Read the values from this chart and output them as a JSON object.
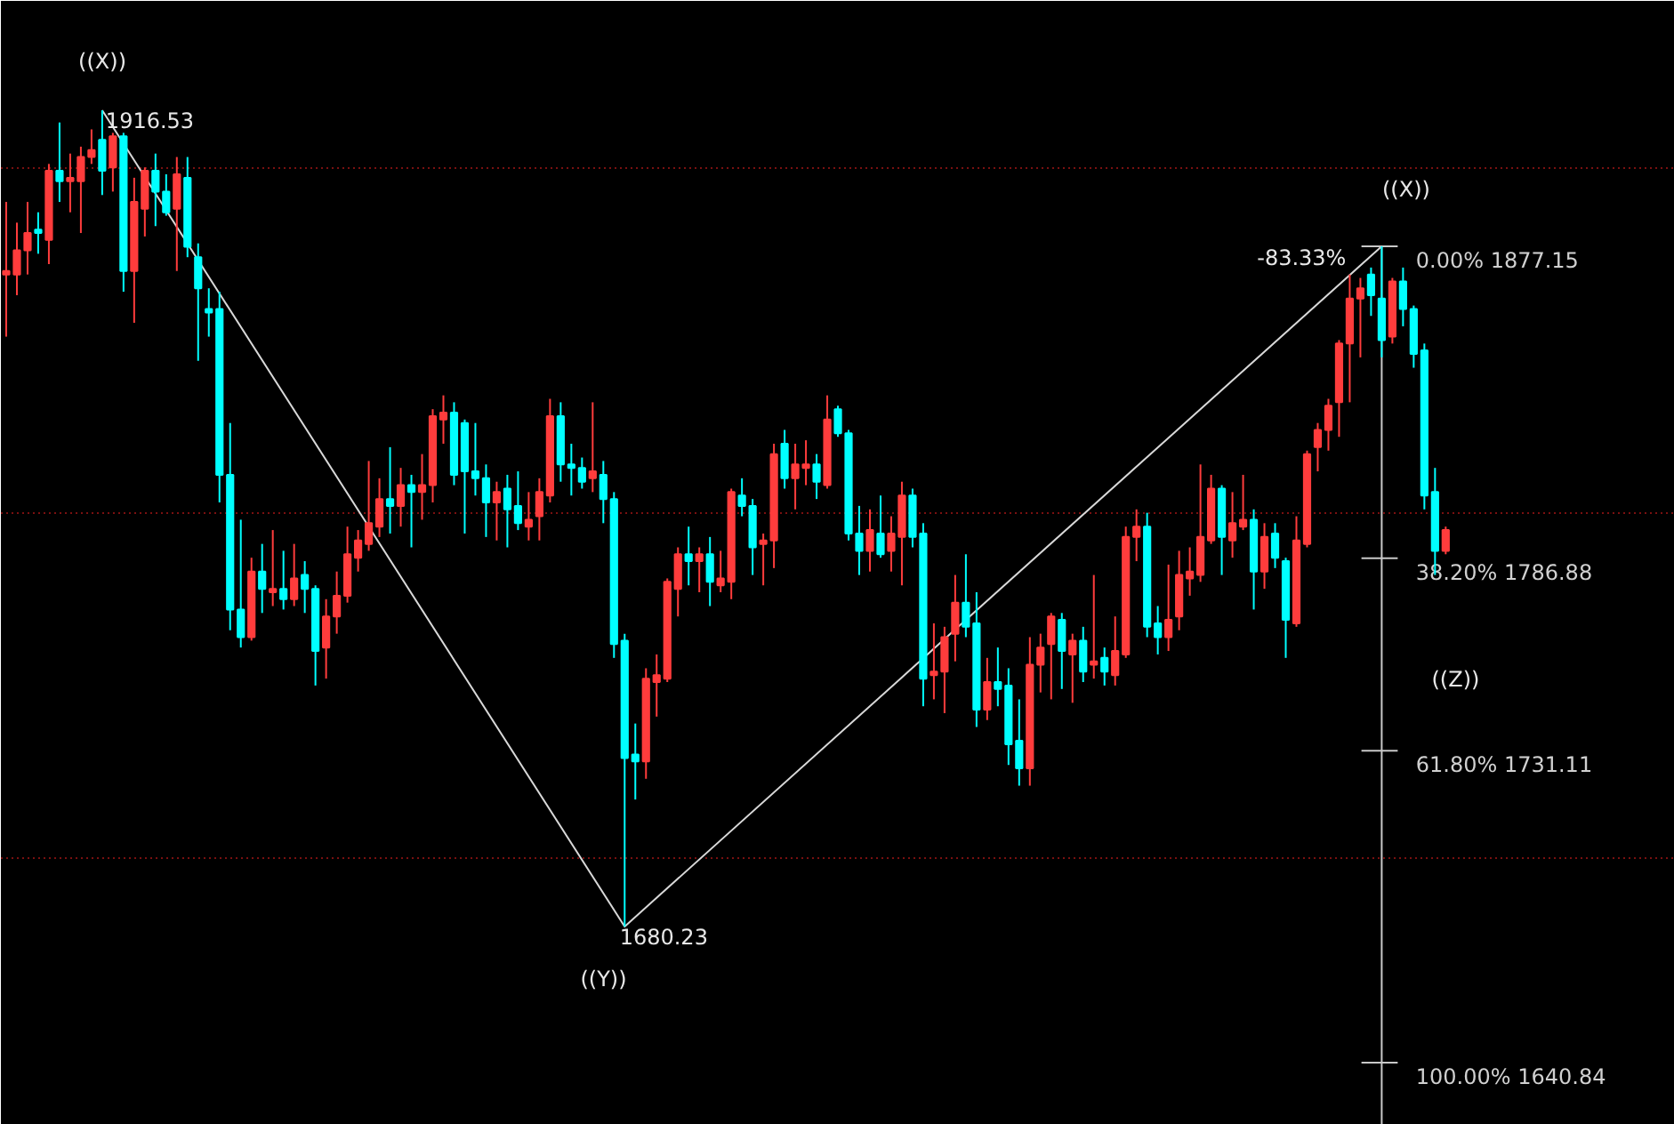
{
  "chart_data": {
    "type": "candlestick",
    "categories": [
      null,
      null,
      null,
      null,
      null,
      null,
      null,
      null,
      null,
      null,
      null,
      null,
      null,
      null,
      null,
      null,
      null,
      null,
      null,
      null,
      null,
      null,
      null,
      null,
      null,
      null,
      null,
      null,
      null,
      null,
      null,
      null,
      null,
      null,
      null,
      null,
      null,
      null,
      null,
      null,
      null,
      null,
      null,
      null,
      null,
      null,
      null,
      null,
      null,
      null,
      null,
      null,
      null,
      null,
      null,
      null,
      null,
      null,
      null,
      null,
      null,
      null,
      null,
      null,
      null,
      null,
      null,
      null,
      null,
      null,
      null,
      null,
      null,
      null,
      null,
      null,
      null,
      null,
      null,
      null,
      null,
      null,
      null,
      null,
      null,
      null,
      null,
      null,
      null,
      null,
      null,
      null,
      null,
      null,
      null,
      null,
      null,
      null,
      null,
      null,
      null,
      null,
      null,
      null,
      null,
      null,
      null,
      null,
      null,
      null,
      null,
      null,
      null,
      null,
      null,
      null,
      null,
      null,
      null,
      null,
      null,
      null,
      null,
      null,
      null,
      null,
      null,
      null,
      null,
      null,
      null,
      null,
      null,
      null,
      null,
      null
    ],
    "ohlc": [
      [
        1869,
        1890,
        1851,
        1870
      ],
      [
        1869,
        1884,
        1863,
        1876
      ],
      [
        1876,
        1890,
        1869,
        1881
      ],
      [
        1882,
        1887,
        1875,
        1881
      ],
      [
        1879,
        1901,
        1872,
        1899
      ],
      [
        1899,
        1913,
        1890,
        1896
      ],
      [
        1896,
        1904,
        1887,
        1897
      ],
      [
        1896,
        1906,
        1881,
        1903
      ],
      [
        1903,
        1911,
        1901,
        1905
      ],
      [
        1908,
        1916.53,
        1892,
        1899
      ],
      [
        1900,
        1910,
        1893,
        1909
      ],
      [
        1909,
        1910,
        1864,
        1870
      ],
      [
        1870,
        1897,
        1855,
        1890
      ],
      [
        1888,
        1900,
        1880,
        1899
      ],
      [
        1899,
        1904,
        1883,
        1893
      ],
      [
        1893,
        1898,
        1886,
        1887
      ],
      [
        1888,
        1903,
        1870,
        1898
      ],
      [
        1897,
        1903,
        1874,
        1877
      ],
      [
        1874,
        1878,
        1844,
        1865
      ],
      [
        1859,
        1865,
        1851,
        1858
      ],
      [
        1859,
        1864,
        1803,
        1811
      ],
      [
        1811,
        1826,
        1766,
        1772
      ],
      [
        1772,
        1798,
        1761,
        1764
      ],
      [
        1764,
        1787,
        1763,
        1783
      ],
      [
        1783,
        1791,
        1771,
        1778
      ],
      [
        1777,
        1795,
        1773,
        1778
      ],
      [
        1778,
        1789,
        1772,
        1775
      ],
      [
        1775,
        1791,
        1773,
        1781
      ],
      [
        1782,
        1786,
        1771,
        1778
      ],
      [
        1778,
        1779,
        1750,
        1760
      ],
      [
        1761,
        1775,
        1752,
        1770
      ],
      [
        1770,
        1783,
        1765,
        1776
      ],
      [
        1776,
        1796,
        1774,
        1788
      ],
      [
        1787,
        1795,
        1783,
        1792
      ],
      [
        1791,
        1815,
        1789,
        1797
      ],
      [
        1796,
        1810,
        1793,
        1804
      ],
      [
        1804,
        1819,
        1794,
        1802
      ],
      [
        1802,
        1813,
        1796,
        1808
      ],
      [
        1808,
        1811,
        1790,
        1806
      ],
      [
        1806,
        1817,
        1798,
        1808
      ],
      [
        1808,
        1830,
        1803,
        1828
      ],
      [
        1827,
        1834,
        1820,
        1829
      ],
      [
        1829,
        1832,
        1808,
        1811
      ],
      [
        1826,
        1827,
        1794,
        1812
      ],
      [
        1812,
        1826,
        1805,
        1810
      ],
      [
        1810,
        1814,
        1793,
        1803
      ],
      [
        1803,
        1809,
        1792,
        1806
      ],
      [
        1807,
        1811,
        1790,
        1801
      ],
      [
        1802,
        1812,
        1795,
        1797
      ],
      [
        1796,
        1806,
        1792,
        1798
      ],
      [
        1799,
        1810,
        1792,
        1806
      ],
      [
        1805,
        1833,
        1803,
        1828
      ],
      [
        1828,
        1832,
        1809,
        1814
      ],
      [
        1814,
        1820,
        1805,
        1813
      ],
      [
        1813,
        1816,
        1807,
        1809
      ],
      [
        1810,
        1832,
        1806,
        1812
      ],
      [
        1811,
        1815,
        1797,
        1804
      ],
      [
        1804,
        1806,
        1758,
        1762
      ],
      [
        1763,
        1765,
        1680.23,
        1729
      ],
      [
        1730,
        1739,
        1717,
        1728
      ],
      [
        1728,
        1755,
        1723,
        1752
      ],
      [
        1751,
        1759,
        1741,
        1753
      ],
      [
        1752,
        1781,
        1751,
        1780
      ],
      [
        1778,
        1790,
        1770,
        1788
      ],
      [
        1788,
        1796,
        1779,
        1786
      ],
      [
        1786,
        1790,
        1777,
        1788
      ],
      [
        1788,
        1793,
        1773,
        1780
      ],
      [
        1779,
        1789,
        1777,
        1781
      ],
      [
        1780,
        1807,
        1775,
        1806
      ],
      [
        1805,
        1810,
        1799,
        1802
      ],
      [
        1802,
        1804,
        1782,
        1790
      ],
      [
        1791,
        1794,
        1779,
        1792
      ],
      [
        1792,
        1820,
        1784,
        1817
      ],
      [
        1820,
        1824,
        1807,
        1810
      ],
      [
        1810,
        1820,
        1801,
        1814
      ],
      [
        1813,
        1821,
        1808,
        1814
      ],
      [
        1814,
        1817,
        1804,
        1809
      ],
      [
        1808,
        1834,
        1807,
        1827
      ],
      [
        1830,
        1831,
        1822,
        1823
      ],
      [
        1823,
        1824,
        1792,
        1794
      ],
      [
        1794,
        1802,
        1782,
        1789
      ],
      [
        1789,
        1801,
        1783,
        1795
      ],
      [
        1794,
        1805,
        1787,
        1788
      ],
      [
        1789,
        1799,
        1783,
        1794
      ],
      [
        1793,
        1809,
        1779,
        1805
      ],
      [
        1805,
        1807,
        1790,
        1793
      ],
      [
        1794,
        1797,
        1744,
        1752
      ],
      [
        1753,
        1768,
        1746,
        1754
      ],
      [
        1754,
        1767,
        1742,
        1764
      ],
      [
        1765,
        1782,
        1757,
        1774
      ],
      [
        1774,
        1788,
        1764,
        1767
      ],
      [
        1768,
        1777,
        1738,
        1743
      ],
      [
        1743,
        1758,
        1740,
        1751
      ],
      [
        1751,
        1761,
        1744,
        1749
      ],
      [
        1750,
        1755,
        1727,
        1733
      ],
      [
        1734,
        1746,
        1721,
        1726
      ],
      [
        1726,
        1764,
        1721,
        1756
      ],
      [
        1756,
        1765,
        1748,
        1761
      ],
      [
        1762,
        1771,
        1746,
        1770
      ],
      [
        1769,
        1771,
        1749,
        1760
      ],
      [
        1759,
        1765,
        1745,
        1763
      ],
      [
        1763,
        1767,
        1751,
        1754
      ],
      [
        1756,
        1782,
        1752,
        1757
      ],
      [
        1758,
        1761,
        1750,
        1754
      ],
      [
        1753,
        1770,
        1750,
        1760
      ],
      [
        1759,
        1796,
        1758,
        1793
      ],
      [
        1793,
        1801,
        1786,
        1796
      ],
      [
        1796,
        1800,
        1764,
        1767
      ],
      [
        1768,
        1773,
        1759,
        1764
      ],
      [
        1764,
        1785,
        1760,
        1769
      ],
      [
        1770,
        1789,
        1766,
        1782
      ],
      [
        1781,
        1790,
        1776,
        1783
      ],
      [
        1782,
        1814,
        1780,
        1793
      ],
      [
        1792,
        1811,
        1791,
        1807
      ],
      [
        1807,
        1808,
        1782,
        1793
      ],
      [
        1792,
        1806,
        1787,
        1797
      ],
      [
        1796,
        1811,
        1795,
        1798
      ],
      [
        1798,
        1801,
        1772,
        1783
      ],
      [
        1783,
        1797,
        1778,
        1793
      ],
      [
        1794,
        1797,
        1784,
        1787
      ],
      [
        1786,
        1787,
        1758,
        1769
      ],
      [
        1768,
        1799,
        1767,
        1792
      ],
      [
        1791,
        1818,
        1790,
        1817
      ],
      [
        1819,
        1826,
        1812,
        1824
      ],
      [
        1824,
        1833,
        1818,
        1831
      ],
      [
        1832,
        1850,
        1822,
        1849
      ],
      [
        1849,
        1869,
        1832,
        1862
      ],
      [
        1862,
        1868,
        1845,
        1865
      ],
      [
        1869,
        1871,
        1857,
        1863
      ],
      [
        1862,
        1877.15,
        1845,
        1850
      ],
      [
        1851,
        1868,
        1849,
        1867
      ],
      [
        1867,
        1871,
        1854,
        1859
      ],
      [
        1859,
        1860,
        1842,
        1846
      ],
      [
        1847,
        1849,
        1801,
        1805
      ],
      [
        1806,
        1813,
        1782,
        1789
      ],
      [
        1789,
        1796,
        1788,
        1795
      ]
    ],
    "colors": [
      "#ff3c3c",
      "#ff3c3c",
      "#ff3c3c",
      "#00ffff",
      "#ff3c3c",
      "#00ffff",
      "#ff3c3c",
      "#ff3c3c",
      "#ff3c3c",
      "#00ffff",
      "#ff3c3c",
      "#00ffff",
      "#ff3c3c",
      "#ff3c3c",
      "#00ffff",
      "#00ffff",
      "#ff3c3c",
      "#00ffff",
      "#00ffff",
      "#00ffff",
      "#00ffff",
      "#00ffff",
      "#00ffff",
      "#ff3c3c",
      "#00ffff",
      "#ff3c3c",
      "#00ffff",
      "#ff3c3c",
      "#00ffff",
      "#00ffff",
      "#ff3c3c",
      "#ff3c3c",
      "#ff3c3c",
      "#ff3c3c",
      "#ff3c3c",
      "#ff3c3c",
      "#00ffff",
      "#ff3c3c",
      "#00ffff",
      "#ff3c3c",
      "#ff3c3c",
      "#ff3c3c",
      "#00ffff",
      "#00ffff",
      "#00ffff",
      "#00ffff",
      "#ff3c3c",
      "#00ffff",
      "#00ffff",
      "#ff3c3c",
      "#ff3c3c",
      "#ff3c3c",
      "#00ffff",
      "#00ffff",
      "#00ffff",
      "#ff3c3c",
      "#00ffff",
      "#00ffff",
      "#00ffff",
      "#00ffff",
      "#ff3c3c",
      "#ff3c3c",
      "#ff3c3c",
      "#ff3c3c",
      "#00ffff",
      "#ff3c3c",
      "#00ffff",
      "#ff3c3c",
      "#ff3c3c",
      "#00ffff",
      "#00ffff",
      "#ff3c3c",
      "#ff3c3c",
      "#00ffff",
      "#ff3c3c",
      "#ff3c3c",
      "#00ffff",
      "#ff3c3c",
      "#00ffff",
      "#00ffff",
      "#00ffff",
      "#ff3c3c",
      "#00ffff",
      "#ff3c3c",
      "#ff3c3c",
      "#00ffff",
      "#00ffff",
      "#ff3c3c",
      "#ff3c3c",
      "#ff3c3c",
      "#00ffff",
      "#00ffff",
      "#ff3c3c",
      "#00ffff",
      "#00ffff",
      "#00ffff",
      "#ff3c3c",
      "#ff3c3c",
      "#ff3c3c",
      "#00ffff",
      "#ff3c3c",
      "#00ffff",
      "#ff3c3c",
      "#00ffff",
      "#ff3c3c",
      "#ff3c3c",
      "#ff3c3c",
      "#00ffff",
      "#00ffff",
      "#ff3c3c",
      "#ff3c3c",
      "#ff3c3c",
      "#ff3c3c",
      "#ff3c3c",
      "#00ffff",
      "#ff3c3c",
      "#ff3c3c",
      "#00ffff",
      "#ff3c3c",
      "#00ffff",
      "#00ffff",
      "#ff3c3c",
      "#ff3c3c",
      "#ff3c3c",
      "#ff3c3c",
      "#ff3c3c",
      "#ff3c3c",
      "#ff3c3c",
      "#00ffff",
      "#00ffff",
      "#ff3c3c",
      "#00ffff",
      "#00ffff",
      "#00ffff",
      "#00ffff",
      "#ff3c3c"
    ],
    "series": [
      {
        "type": "line",
        "color": "#d8d8d8",
        "values": [
          null,
          null,
          null,
          null,
          null,
          null,
          null,
          null,
          null,
          1916.53,
          null,
          null,
          null,
          null,
          null,
          null,
          null,
          null,
          null,
          null,
          null,
          null,
          null,
          null,
          null,
          null,
          null,
          null,
          null,
          null,
          null,
          null,
          null,
          null,
          null,
          null,
          null,
          null,
          null,
          null,
          null,
          null,
          null,
          null,
          null,
          null,
          null,
          null,
          null,
          null,
          null,
          null,
          null,
          null,
          null,
          null,
          null,
          null,
          1680.23,
          null,
          null,
          null,
          null,
          null,
          null,
          null,
          null,
          null,
          null,
          null,
          null,
          null,
          null,
          null,
          null,
          null,
          null,
          null,
          null,
          null,
          null,
          null,
          null,
          null,
          null,
          null,
          null,
          null,
          null,
          null,
          null,
          null,
          null,
          null,
          null,
          null,
          null,
          null,
          null,
          null,
          null,
          null,
          null,
          null,
          null,
          null,
          null,
          null,
          null,
          null,
          null,
          null,
          null,
          null,
          null,
          null,
          null,
          null,
          null,
          null,
          null,
          null,
          null,
          null,
          null,
          null,
          null,
          null,
          null,
          1877.15,
          null,
          null,
          null,
          null,
          null,
          null
        ]
      }
    ],
    "ylim": [
      1622.8,
      1948.2
    ],
    "yticks": [
      {
        "value": 1700,
        "label": null
      },
      {
        "value": 1800,
        "label": null
      },
      {
        "value": 1900,
        "label": null
      }
    ],
    "grid": "y",
    "tick_labels": false,
    "ref_lines": [
      {
        "axis": "y",
        "value": 1877.15,
        "label": "0.00%   1877.15",
        "color": "#c8c8c8"
      },
      {
        "axis": "y",
        "value": 1786.88,
        "label": "38.20%   1786.88",
        "color": "#c8c8c8"
      },
      {
        "axis": "y",
        "value": 1731.11,
        "label": "61.80%   1731.11",
        "color": "#c8c8c8"
      },
      {
        "axis": "y",
        "value": 1640.84,
        "label": "100.00%   1640.84",
        "color": "#c8c8c8"
      }
    ],
    "annotations": [
      "((X))",
      "1916.53",
      "((Y))",
      "1680.23",
      "-83.33%",
      "((X))",
      "((Z))"
    ]
  }
}
